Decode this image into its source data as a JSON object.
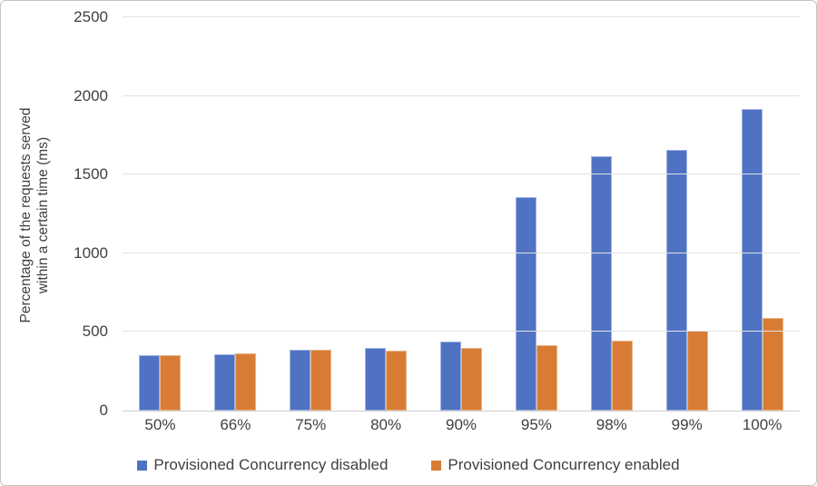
{
  "frame": {
    "background": "#FFFFFF",
    "border_color": "#C4C4C4"
  },
  "chart_data": {
    "type": "bar",
    "title": "",
    "categories": [
      "50%",
      "66%",
      "75%",
      "80%",
      "90%",
      "95%",
      "98%",
      "99%",
      "100%"
    ],
    "series": [
      {
        "name": "Provisioned Concurrency disabled",
        "color": "#4F72C2",
        "border_color": "#9FB3E2",
        "values": [
          352,
          358,
          385,
          398,
          437,
          1356,
          1616,
          1655,
          1920
        ]
      },
      {
        "name": "Provisioned Concurrency enabled",
        "color": "#D87C35",
        "border_color": "#E9B586",
        "values": [
          351,
          365,
          386,
          384,
          396,
          414,
          447,
          510,
          592
        ]
      }
    ],
    "xlabel": "",
    "ylabel": "Percentage of the requests served within a certain time (ms)",
    "ylabel_line1": "Percentage of the requests served",
    "ylabel_line2": "within a certain time (ms)",
    "ylim": [
      0,
      2500
    ],
    "yticks": [
      0,
      500,
      1000,
      1500,
      2000,
      2500
    ],
    "grid": true,
    "legend_position": "bottom",
    "axis_text_color": "#404040",
    "gridline_color": "#E2E2E2",
    "axis_line_color": "#CFCFCF"
  }
}
